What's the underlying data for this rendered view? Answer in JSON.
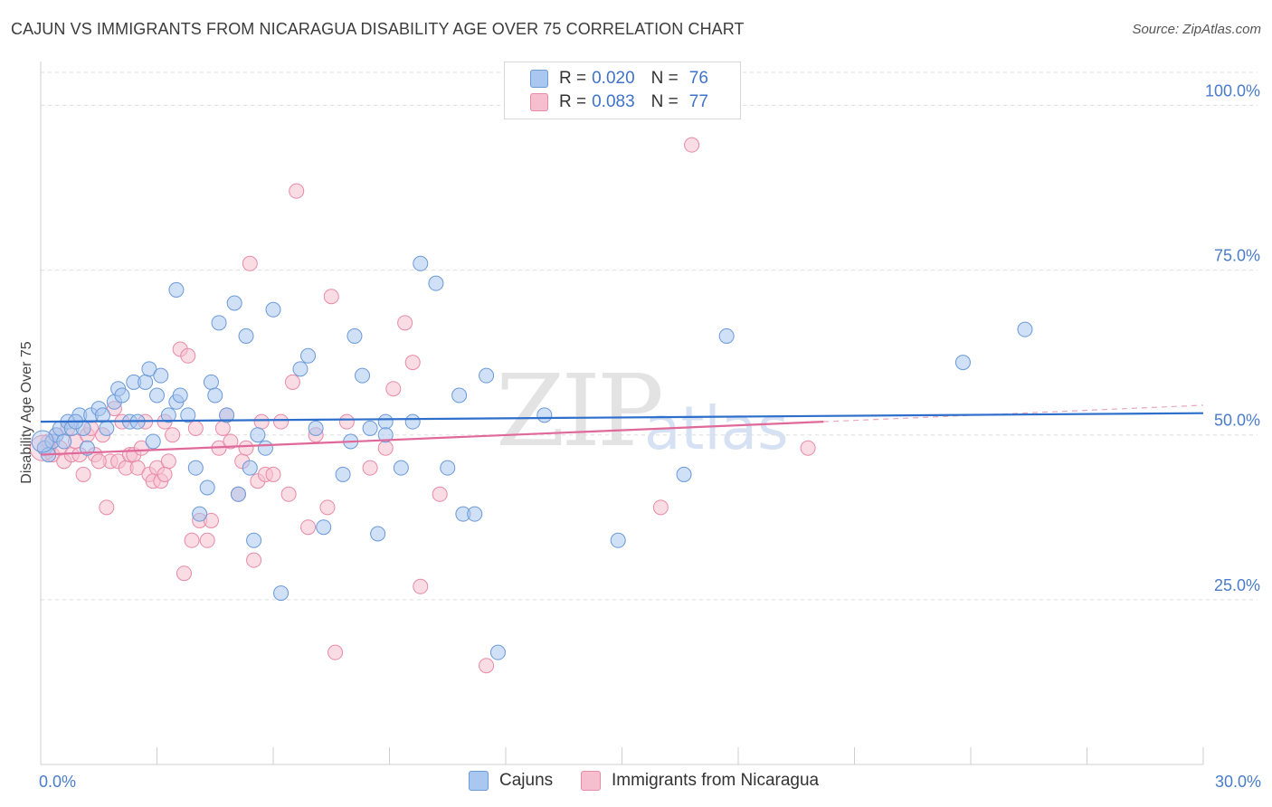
{
  "title": "CAJUN VS IMMIGRANTS FROM NICARAGUA DISABILITY AGE OVER 75 CORRELATION CHART",
  "source": "Source: ZipAtlas.com",
  "watermark": {
    "zip": "ZIP",
    "atlas": "atlas"
  },
  "legend_top": {
    "rows": [
      {
        "r_label": "R =",
        "r_value": "0.020",
        "n_label": "N =",
        "n_value": "76"
      },
      {
        "r_label": "R =",
        "r_value": "0.083",
        "n_label": "N =",
        "n_value": "77"
      }
    ]
  },
  "legend_bottom": {
    "items": [
      "Cajuns",
      "Immigrants from Nicaragua"
    ]
  },
  "colors": {
    "blue_fill": "#aac7ef",
    "blue_stroke": "#6a9ad8",
    "blue_line": "#2e6fcc",
    "pink_fill": "#f6bfd0",
    "pink_stroke": "#e88aa8",
    "pink_line": "#e0699a",
    "grid": "#dddddd",
    "tick_text": "#4a7cc9"
  },
  "chart_data": {
    "type": "scatter",
    "title": "CAJUN VS IMMIGRANTS FROM NICARAGUA DISABILITY AGE OVER 75 CORRELATION CHART",
    "xlabel": "",
    "ylabel": "Disability Age Over 75",
    "xlim": [
      0,
      30
    ],
    "ylim": [
      0,
      105
    ],
    "x_tick_labels": [
      "0.0%",
      "30.0%"
    ],
    "y_ticks": [
      25,
      50,
      75,
      100
    ],
    "y_tick_labels": [
      "25.0%",
      "50.0%",
      "75.0%",
      "100.0%"
    ],
    "grid": true,
    "legend_position": "top-center",
    "series": [
      {
        "name": "Cajuns",
        "color": "#aac7ef",
        "trend": {
          "x": [
            0,
            30
          ],
          "y": [
            52.0,
            53.3
          ]
        },
        "points": [
          [
            0.1,
            48
          ],
          [
            0.3,
            49
          ],
          [
            0.4,
            50
          ],
          [
            0.5,
            51
          ],
          [
            0.6,
            49
          ],
          [
            0.7,
            52
          ],
          [
            0.8,
            51
          ],
          [
            1.0,
            53
          ],
          [
            1.1,
            51
          ],
          [
            1.3,
            53
          ],
          [
            1.5,
            54
          ],
          [
            1.6,
            53
          ],
          [
            1.7,
            51
          ],
          [
            1.9,
            55
          ],
          [
            2.0,
            57
          ],
          [
            2.1,
            56
          ],
          [
            2.3,
            52
          ],
          [
            2.4,
            58
          ],
          [
            2.5,
            52
          ],
          [
            2.7,
            58
          ],
          [
            2.8,
            60
          ],
          [
            2.9,
            49
          ],
          [
            3.0,
            56
          ],
          [
            3.1,
            59
          ],
          [
            3.3,
            53
          ],
          [
            3.5,
            72
          ],
          [
            3.5,
            55
          ],
          [
            3.6,
            56
          ],
          [
            3.8,
            53
          ],
          [
            4.0,
            45
          ],
          [
            4.1,
            38
          ],
          [
            4.3,
            42
          ],
          [
            4.4,
            58
          ],
          [
            4.5,
            56
          ],
          [
            4.6,
            67
          ],
          [
            4.8,
            53
          ],
          [
            5.0,
            70
          ],
          [
            5.1,
            41
          ],
          [
            5.3,
            65
          ],
          [
            5.4,
            45
          ],
          [
            5.5,
            34
          ],
          [
            5.6,
            50
          ],
          [
            5.8,
            48
          ],
          [
            6.0,
            69
          ],
          [
            6.2,
            26
          ],
          [
            6.7,
            60
          ],
          [
            6.9,
            62
          ],
          [
            7.1,
            51
          ],
          [
            7.3,
            36
          ],
          [
            7.8,
            44
          ],
          [
            8.0,
            49
          ],
          [
            8.1,
            65
          ],
          [
            8.3,
            59
          ],
          [
            8.5,
            51
          ],
          [
            8.7,
            35
          ],
          [
            8.9,
            52
          ],
          [
            8.9,
            50
          ],
          [
            9.3,
            45
          ],
          [
            9.6,
            52
          ],
          [
            9.8,
            76
          ],
          [
            10.2,
            73
          ],
          [
            10.5,
            45
          ],
          [
            10.8,
            56
          ],
          [
            10.9,
            38
          ],
          [
            11.2,
            38
          ],
          [
            11.5,
            59
          ],
          [
            11.8,
            17
          ],
          [
            13.0,
            53
          ],
          [
            14.9,
            34
          ],
          [
            16.6,
            44
          ],
          [
            17.7,
            65
          ],
          [
            23.8,
            61
          ],
          [
            25.4,
            66
          ],
          [
            0.2,
            47
          ],
          [
            0.9,
            52
          ],
          [
            1.2,
            48
          ]
        ]
      },
      {
        "name": "Immigrants from Nicaragua",
        "color": "#f6bfd0",
        "trend": {
          "x": [
            0,
            20.2
          ],
          "y": [
            47.0,
            52.0
          ]
        },
        "dashed_extension": {
          "x": [
            20.2,
            30
          ],
          "y": [
            52.0,
            54.5
          ]
        },
        "points": [
          [
            0.1,
            48
          ],
          [
            0.2,
            49
          ],
          [
            0.3,
            47
          ],
          [
            0.4,
            50
          ],
          [
            0.5,
            48
          ],
          [
            0.6,
            46
          ],
          [
            0.7,
            51
          ],
          [
            0.8,
            47
          ],
          [
            0.9,
            49
          ],
          [
            1.0,
            47
          ],
          [
            1.1,
            44
          ],
          [
            1.2,
            50
          ],
          [
            1.3,
            51
          ],
          [
            1.4,
            47
          ],
          [
            1.6,
            50
          ],
          [
            1.7,
            39
          ],
          [
            1.8,
            46
          ],
          [
            1.9,
            54
          ],
          [
            2.0,
            46
          ],
          [
            2.1,
            52
          ],
          [
            2.2,
            45
          ],
          [
            2.3,
            47
          ],
          [
            2.4,
            47
          ],
          [
            2.5,
            45
          ],
          [
            2.6,
            48
          ],
          [
            2.7,
            52
          ],
          [
            2.8,
            44
          ],
          [
            2.9,
            43
          ],
          [
            3.0,
            45
          ],
          [
            3.1,
            43
          ],
          [
            3.2,
            52
          ],
          [
            3.3,
            46
          ],
          [
            3.4,
            50
          ],
          [
            3.6,
            63
          ],
          [
            3.7,
            29
          ],
          [
            3.8,
            62
          ],
          [
            3.9,
            34
          ],
          [
            4.0,
            51
          ],
          [
            4.1,
            37
          ],
          [
            4.3,
            34
          ],
          [
            4.4,
            37
          ],
          [
            4.6,
            48
          ],
          [
            4.7,
            51
          ],
          [
            4.8,
            53
          ],
          [
            4.9,
            49
          ],
          [
            5.1,
            41
          ],
          [
            5.2,
            46
          ],
          [
            5.3,
            48
          ],
          [
            5.5,
            31
          ],
          [
            5.6,
            43
          ],
          [
            5.7,
            52
          ],
          [
            5.8,
            44
          ],
          [
            6.0,
            44
          ],
          [
            6.2,
            52
          ],
          [
            6.4,
            41
          ],
          [
            6.5,
            58
          ],
          [
            6.6,
            87
          ],
          [
            6.9,
            36
          ],
          [
            7.1,
            50
          ],
          [
            7.4,
            39
          ],
          [
            7.5,
            71
          ],
          [
            7.6,
            17
          ],
          [
            7.9,
            52
          ],
          [
            8.5,
            45
          ],
          [
            8.9,
            48
          ],
          [
            9.1,
            57
          ],
          [
            9.4,
            67
          ],
          [
            9.6,
            61
          ],
          [
            9.8,
            27
          ],
          [
            10.3,
            41
          ],
          [
            11.5,
            15
          ],
          [
            16.0,
            39
          ],
          [
            16.8,
            94
          ],
          [
            19.8,
            48
          ],
          [
            5.4,
            76
          ],
          [
            3.2,
            44
          ],
          [
            1.5,
            46
          ]
        ]
      }
    ]
  }
}
